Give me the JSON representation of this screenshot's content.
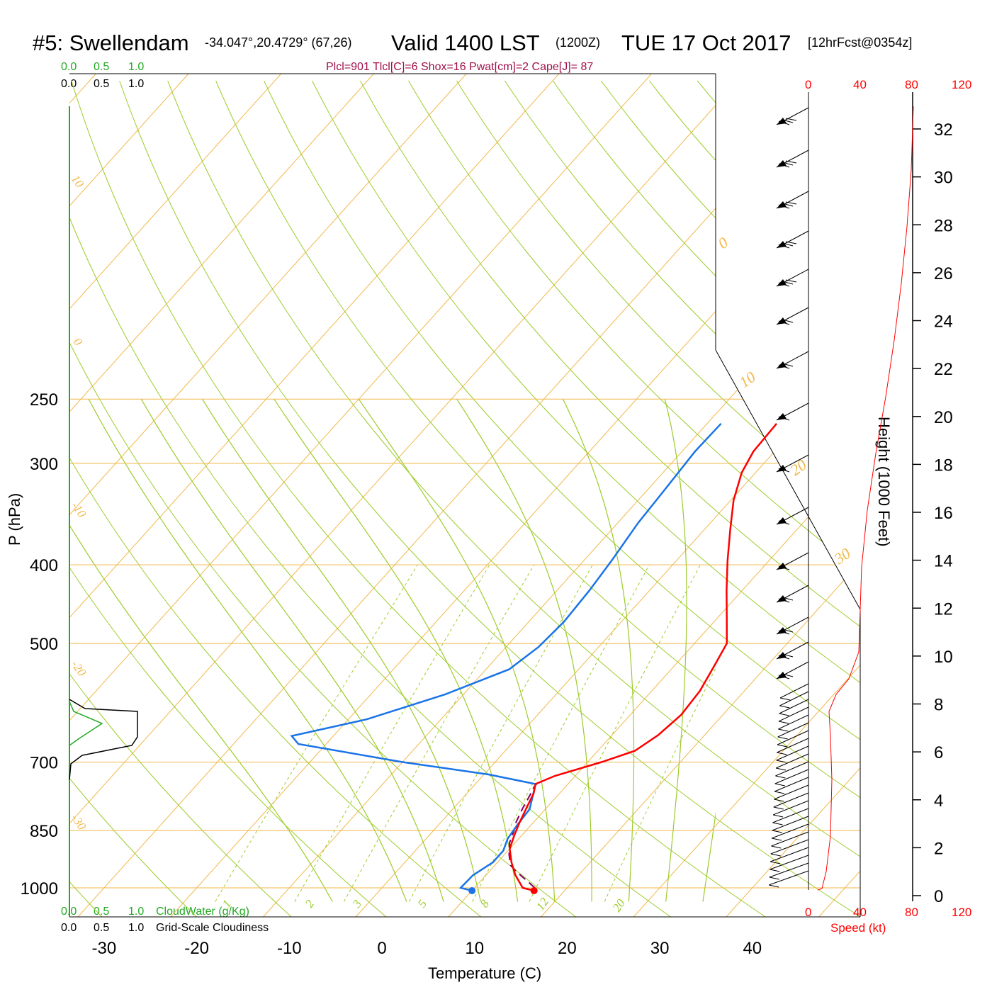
{
  "title": {
    "station": "#5: Swellendam",
    "coords": "-34.047°,20.4729° (67,26)",
    "valid": "Valid 1400 LST",
    "zulu": "(1200Z)",
    "date": "TUE 17 Oct 2017",
    "forecast": "[12hrFcst@0354z]"
  },
  "params_line": "Plcl=901 Tlcl[C]=6 Shox=16 Pwat[cm]=2 Cape[J]= 87",
  "colors": {
    "temperature": "#ff0000",
    "dewpoint": "#1a73e8",
    "parcel": "#800060",
    "isotherm": "#f2b84a",
    "adiabat": "#9ccc2a",
    "mixing_ratio": "#9ccc2a",
    "cloud_water": "#22aa22",
    "cloudiness": "#000000",
    "wind_speed": "#ff0000"
  },
  "cloud_scale": {
    "water_ticks": [
      "0.0",
      "0.5",
      "1.0"
    ],
    "cloudiness_ticks": [
      "0.0",
      "0.5",
      "1.0"
    ],
    "water_label": "CloudWater (g/Kg)",
    "cloudiness_label": "Grid-Scale Cloudiness"
  },
  "speed_axis": {
    "ticks": [
      "0",
      "40",
      "80",
      "120"
    ],
    "label": "Speed (kt)"
  },
  "chart_data": {
    "type": "line",
    "xlabel": "Temperature (C)",
    "ylabel": "P (hPa)",
    "y2label": "Height (1000 Feet)",
    "pressure_ticks": [
      "250",
      "300",
      "400",
      "500",
      "700",
      "850",
      "1000"
    ],
    "temperature_ticks": [
      "-30",
      "-20",
      "-10",
      "0",
      "10",
      "20",
      "30",
      "40"
    ],
    "height_ticks": [
      "0",
      "2",
      "4",
      "6",
      "8",
      "10",
      "12",
      "14",
      "16",
      "18",
      "20",
      "22",
      "24",
      "26",
      "28",
      "30",
      "32"
    ],
    "isotherm_labels": [
      "10",
      "0",
      "-10",
      "-20",
      "-30"
    ],
    "isotherm_right_labels": [
      "0",
      "10",
      "20",
      "30"
    ],
    "mixing_ratio_labels": [
      "1",
      "2",
      "3",
      "5",
      "8",
      "12",
      "20"
    ],
    "series": [
      {
        "name": "Temperature",
        "points": [
          [
            16.7,
            1008
          ],
          [
            15.2,
            1000
          ],
          [
            13.2,
            965
          ],
          [
            11.5,
            930
          ],
          [
            10,
            895
          ],
          [
            9.2,
            862
          ],
          [
            8.5,
            830
          ],
          [
            7.8,
            795
          ],
          [
            7.2,
            765
          ],
          [
            6.5,
            745
          ],
          [
            7.8,
            728
          ],
          [
            11.5,
            700
          ],
          [
            14,
            678
          ],
          [
            15,
            648
          ],
          [
            15.5,
            612
          ],
          [
            15.2,
            572
          ],
          [
            14.2,
            528
          ],
          [
            13.5,
            500
          ],
          [
            11,
            465
          ],
          [
            8.3,
            430
          ],
          [
            5.5,
            395
          ],
          [
            2.8,
            362
          ],
          [
            0.3,
            333
          ],
          [
            -1.5,
            308
          ],
          [
            -2.3,
            290
          ],
          [
            -2.5,
            268
          ]
        ]
      },
      {
        "name": "Dew point",
        "points": [
          [
            10,
            1008
          ],
          [
            8.5,
            1000
          ],
          [
            8.6,
            965
          ],
          [
            9.5,
            930
          ],
          [
            9.5,
            900
          ],
          [
            8.8,
            870
          ],
          [
            8.5,
            835
          ],
          [
            8.3,
            800
          ],
          [
            7.5,
            775
          ],
          [
            6.5,
            745
          ],
          [
            0.5,
            725
          ],
          [
            -10,
            700
          ],
          [
            -23,
            665
          ],
          [
            -24.5,
            650
          ],
          [
            -18,
            620
          ],
          [
            -12,
            578
          ],
          [
            -7.5,
            538
          ],
          [
            -6.5,
            505
          ],
          [
            -6.2,
            470
          ],
          [
            -6.5,
            430
          ],
          [
            -7,
            395
          ],
          [
            -7.8,
            355
          ],
          [
            -8.2,
            320
          ],
          [
            -8.6,
            290
          ],
          [
            -8.5,
            268
          ]
        ]
      },
      {
        "name": "Parcel",
        "points": [
          [
            16.5,
            1000
          ],
          [
            14.8,
            978
          ],
          [
            13.2,
            958
          ],
          [
            11.7,
            938
          ],
          [
            10.5,
            910
          ],
          [
            9.4,
            880
          ],
          [
            8.7,
            850
          ],
          [
            8.1,
            830
          ],
          [
            7.5,
            800
          ],
          [
            7,
            770
          ],
          [
            6.6,
            750
          ],
          [
            6.6,
            738
          ]
        ]
      }
    ]
  }
}
